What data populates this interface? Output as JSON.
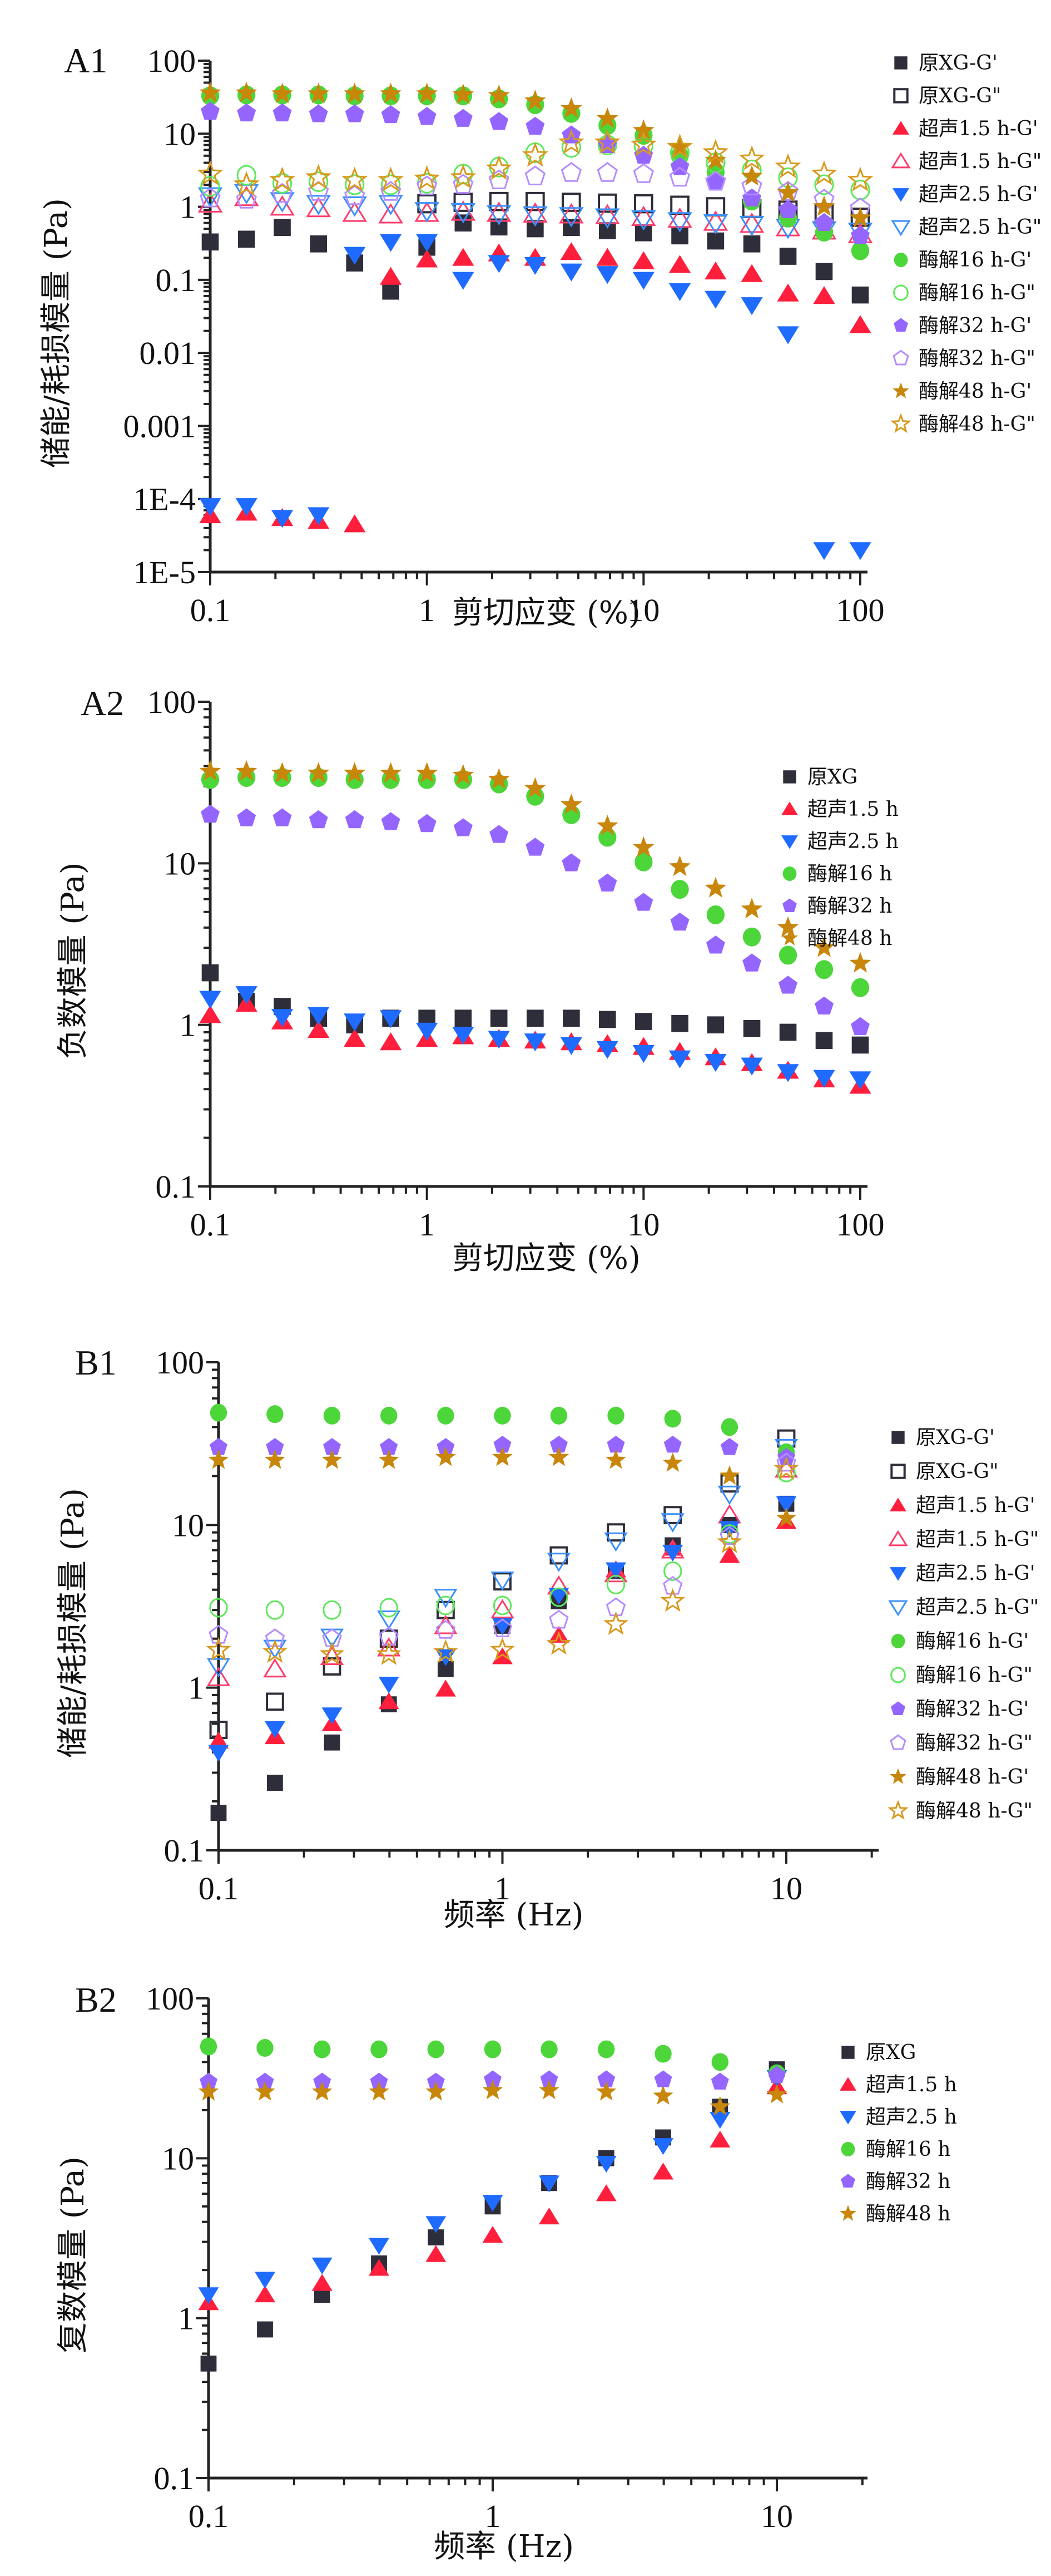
{
  "figure": {
    "panels": [
      "A1",
      "A2",
      "B1",
      "B2"
    ]
  },
  "colors": {
    "raw_xg": "#2e2d3a",
    "us_1_5h": "#ff1f3d",
    "us_1_5h_open": "#ff3b6b",
    "us_2_5h": "#1f6bff",
    "us_2_5h_open": "#3a8fff",
    "enz_16h": "#4cd63a",
    "enz_16h_open": "#5ee85a",
    "enz_32h": "#9466ff",
    "enz_32h_open": "#b58cff",
    "enz_48h": "#c8860a",
    "enz_48h_open": "#d79a1e"
  },
  "chart_data": [
    {
      "id": "A1",
      "type": "scatter",
      "panel_label": "A1",
      "title": "",
      "xlabel": "剪切应变 (%)",
      "ylabel": "储能/耗损模量 (Pa)",
      "xscale": "log",
      "yscale": "log",
      "xlim": [
        0.1,
        100
      ],
      "ylim": [
        1e-05,
        100
      ],
      "xticks": [
        0.1,
        1,
        10,
        100
      ],
      "xtick_labels": [
        "0.1",
        "1",
        "10",
        "100"
      ],
      "yticks": [
        1e-05,
        0.0001,
        0.001,
        0.01,
        0.1,
        1,
        10,
        100
      ],
      "ytick_labels": [
        "1E-5",
        "1E-4",
        "0.001",
        "0.01",
        "0.1",
        "1",
        "10",
        "100"
      ],
      "grid": false,
      "legend_position": "right",
      "x": [
        0.1,
        0.147,
        0.215,
        0.316,
        0.464,
        0.681,
        1.0,
        1.47,
        2.15,
        3.16,
        4.64,
        6.81,
        10.0,
        14.7,
        21.5,
        31.6,
        46.4,
        68.1,
        100
      ],
      "series": [
        {
          "name": "原XG-G'",
          "marker": "square",
          "filled": true,
          "color_key": "raw_xg",
          "values": [
            0.33,
            0.36,
            0.52,
            0.31,
            0.17,
            0.07,
            0.28,
            0.6,
            0.53,
            0.5,
            0.52,
            0.47,
            0.44,
            0.4,
            0.34,
            0.31,
            0.21,
            0.13,
            0.062
          ]
        },
        {
          "name": "原XG-G\"",
          "marker": "square",
          "filled": false,
          "color_key": "raw_xg",
          "values": [
            null,
            null,
            null,
            null,
            null,
            null,
            1.1,
            1.15,
            1.18,
            1.18,
            1.15,
            1.12,
            1.1,
            1.05,
            1.0,
            0.95,
            0.9,
            0.8,
            0.72
          ]
        },
        {
          "name": "超声1.5 h-G'",
          "marker": "triangle-up",
          "filled": true,
          "color_key": "us_1_5h",
          "values": [
            6e-05,
            6.5e-05,
            5.5e-05,
            5e-05,
            4.5e-05,
            0.11,
            0.19,
            0.2,
            0.23,
            0.2,
            0.24,
            0.2,
            0.18,
            0.16,
            0.13,
            0.12,
            0.065,
            0.06,
            0.024
          ]
        },
        {
          "name": "超声1.5 h-G\"",
          "marker": "triangle-up",
          "filled": false,
          "color_key": "us_1_5h_open",
          "values": [
            1.1,
            1.35,
            1.0,
            0.95,
            0.82,
            0.78,
            0.82,
            0.85,
            0.82,
            0.8,
            0.78,
            0.76,
            0.72,
            0.68,
            0.62,
            0.58,
            0.52,
            0.47,
            0.42
          ]
        },
        {
          "name": "超声2.5 h-G'",
          "marker": "triangle-down",
          "filled": true,
          "color_key": "us_2_5h",
          "values": [
            8e-05,
            8e-05,
            5.5e-05,
            6e-05,
            0.22,
            0.33,
            0.33,
            0.1,
            0.17,
            0.16,
            0.13,
            0.12,
            0.1,
            0.07,
            0.055,
            0.045,
            0.018,
            2e-05,
            2e-05
          ]
        },
        {
          "name": "超声2.5 h-G\"",
          "marker": "triangle-down",
          "filled": false,
          "color_key": "us_2_5h_open",
          "values": [
            1.4,
            1.55,
            1.2,
            1.1,
            1.05,
            1.1,
            0.88,
            0.85,
            0.8,
            0.77,
            0.75,
            0.72,
            0.68,
            0.64,
            0.6,
            0.57,
            0.52,
            0.48,
            0.46
          ]
        },
        {
          "name": "酶解16 h-G'",
          "marker": "circle",
          "filled": true,
          "color_key": "enz_16h",
          "values": [
            33,
            34,
            34,
            34,
            33,
            33,
            33,
            33,
            30,
            25,
            19,
            13,
            9.5,
            5,
            3,
            1.2,
            0.7,
            0.45,
            0.25
          ]
        },
        {
          "name": "酶解16 h-G\"",
          "marker": "circle",
          "filled": false,
          "color_key": "enz_16h_open",
          "values": [
            1.9,
            2.7,
            2.1,
            2.2,
            2.0,
            2.0,
            2.1,
            2.8,
            3.5,
            5.5,
            6.5,
            7.0,
            6.8,
            5.5,
            4.0,
            3.2,
            2.5,
            2.0,
            1.7
          ]
        },
        {
          "name": "酶解32 h-G'",
          "marker": "pentagon",
          "filled": true,
          "color_key": "enz_32h",
          "values": [
            20,
            19,
            19,
            18.5,
            18.5,
            18,
            17,
            16,
            14.5,
            12.5,
            9.5,
            7.0,
            5.0,
            3.5,
            2.2,
            1.3,
            0.9,
            0.6,
            0.4
          ]
        },
        {
          "name": "酶解32 h-G\"",
          "marker": "pentagon",
          "filled": false,
          "color_key": "enz_32h_open",
          "values": [
            1.3,
            1.25,
            1.5,
            1.6,
            1.4,
            1.6,
            1.9,
            2.0,
            2.3,
            2.6,
            2.9,
            2.9,
            2.8,
            2.5,
            2.2,
            1.9,
            1.6,
            1.25,
            0.95
          ]
        },
        {
          "name": "酶解48 h-G'",
          "marker": "star",
          "filled": true,
          "color_key": "enz_48h",
          "values": [
            36,
            36,
            35,
            35,
            35,
            35,
            35,
            34,
            33,
            28,
            22,
            16,
            11,
            6.5,
            4.3,
            2.6,
            1.55,
            1.0,
            0.7
          ]
        },
        {
          "name": "酶解48 h-G\"",
          "marker": "star",
          "filled": false,
          "color_key": "enz_48h_open",
          "values": [
            2.8,
            2.0,
            2.3,
            2.5,
            2.3,
            2.3,
            2.4,
            2.5,
            3.3,
            5.0,
            7.5,
            7.5,
            7.0,
            6.5,
            5.5,
            4.5,
            3.5,
            2.8,
            2.3
          ]
        }
      ]
    },
    {
      "id": "A2",
      "type": "scatter",
      "panel_label": "A2",
      "title": "",
      "xlabel": "剪切应变 (%)",
      "ylabel": "负数模量 (Pa)",
      "xscale": "log",
      "yscale": "log",
      "xlim": [
        0.1,
        100
      ],
      "ylim": [
        0.1,
        100
      ],
      "xticks": [
        0.1,
        1,
        10,
        100
      ],
      "xtick_labels": [
        "0.1",
        "1",
        "10",
        "100"
      ],
      "yticks": [
        0.1,
        1,
        10,
        100
      ],
      "ytick_labels": [
        "0.1",
        "1",
        "10",
        "100"
      ],
      "grid": false,
      "legend_position": "top-right",
      "x": [
        0.1,
        0.147,
        0.215,
        0.316,
        0.464,
        0.681,
        1.0,
        1.47,
        2.15,
        3.16,
        4.64,
        6.81,
        10.0,
        14.7,
        21.5,
        31.6,
        46.4,
        68.1,
        100
      ],
      "series": [
        {
          "name": "原XG",
          "marker": "square",
          "filled": true,
          "color_key": "raw_xg",
          "values": [
            2.1,
            1.4,
            1.3,
            1.1,
            1.0,
            1.1,
            1.1,
            1.1,
            1.1,
            1.1,
            1.1,
            1.08,
            1.05,
            1.02,
            1.0,
            0.95,
            0.9,
            0.8,
            0.75
          ]
        },
        {
          "name": "超声1.5 h",
          "marker": "triangle-up",
          "filled": true,
          "color_key": "us_1_5h",
          "values": [
            1.15,
            1.35,
            1.05,
            0.93,
            0.82,
            0.78,
            0.82,
            0.85,
            0.82,
            0.8,
            0.78,
            0.76,
            0.73,
            0.68,
            0.63,
            0.58,
            0.52,
            0.46,
            0.42
          ]
        },
        {
          "name": "超声2.5 h",
          "marker": "triangle-down",
          "filled": true,
          "color_key": "us_2_5h",
          "values": [
            1.45,
            1.55,
            1.12,
            1.15,
            1.05,
            1.1,
            0.92,
            0.87,
            0.82,
            0.79,
            0.75,
            0.71,
            0.67,
            0.62,
            0.59,
            0.56,
            0.51,
            0.47,
            0.46
          ]
        },
        {
          "name": "酶解16 h",
          "marker": "circle",
          "filled": true,
          "color_key": "enz_16h",
          "values": [
            33,
            34,
            34,
            34,
            33,
            33,
            33,
            33,
            31,
            26,
            20,
            14.5,
            10.2,
            6.9,
            4.8,
            3.5,
            2.7,
            2.2,
            1.7
          ]
        },
        {
          "name": "酶解32 h",
          "marker": "pentagon",
          "filled": true,
          "color_key": "enz_32h",
          "values": [
            20,
            19,
            19,
            18.5,
            18.5,
            18,
            17.5,
            16.5,
            15,
            12.5,
            10,
            7.5,
            5.7,
            4.3,
            3.1,
            2.4,
            1.75,
            1.3,
            0.97
          ]
        },
        {
          "name": "酶解48 h",
          "marker": "star",
          "filled": true,
          "color_key": "enz_48h",
          "values": [
            37,
            37,
            36,
            36,
            36,
            36,
            36,
            35,
            33,
            29,
            23,
            17,
            12.5,
            9.5,
            7.0,
            5.2,
            4.0,
            3.0,
            2.4
          ]
        }
      ]
    },
    {
      "id": "B1",
      "type": "scatter",
      "panel_label": "B1",
      "title": "",
      "xlabel": "频率 (Hz)",
      "ylabel": "储能/耗损模量 (Pa)",
      "xscale": "log",
      "yscale": "log",
      "xlim": [
        0.1,
        20
      ],
      "ylim": [
        0.1,
        100
      ],
      "xticks": [
        0.1,
        1,
        10
      ],
      "xtick_labels": [
        "0.1",
        "1",
        "10"
      ],
      "yticks": [
        0.1,
        1,
        10,
        100
      ],
      "ytick_labels": [
        "0.1",
        "1",
        "10",
        "100"
      ],
      "grid": false,
      "legend_position": "right",
      "x": [
        0.1,
        0.158,
        0.251,
        0.398,
        0.631,
        1.0,
        1.58,
        2.51,
        3.98,
        6.31,
        10.0
      ],
      "series": [
        {
          "name": "原XG-G'",
          "marker": "square",
          "filled": true,
          "color_key": "raw_xg",
          "values": [
            0.17,
            0.26,
            0.46,
            0.79,
            1.3,
            2.4,
            3.4,
            5.2,
            7.5,
            10,
            13.5
          ]
        },
        {
          "name": "原XG-G\"",
          "marker": "square",
          "filled": false,
          "color_key": "raw_xg",
          "values": [
            0.55,
            0.82,
            1.35,
            2.0,
            3.0,
            4.5,
            6.5,
            9.0,
            11.5,
            18,
            34
          ]
        },
        {
          "name": "超声1.5 h-G'",
          "marker": "triangle-up",
          "filled": true,
          "color_key": "us_1_5h",
          "values": [
            0.47,
            0.5,
            0.6,
            0.82,
            0.98,
            1.55,
            2.1,
            5.3,
            7.2,
            6.5,
            10.5
          ]
        },
        {
          "name": "超声1.5 h-G\"",
          "marker": "triangle-up",
          "filled": false,
          "color_key": "us_1_5h_open",
          "values": [
            1.15,
            1.3,
            1.55,
            1.75,
            2.4,
            3.0,
            4.2,
            5.0,
            7.0,
            11.5,
            22
          ]
        },
        {
          "name": "超声2.5 h-G'",
          "marker": "triangle-down",
          "filled": true,
          "color_key": "us_2_5h",
          "values": [
            0.4,
            0.56,
            0.68,
            1.05,
            1.55,
            2.4,
            3.7,
            5.3,
            6.8,
            9.5,
            13.5
          ]
        },
        {
          "name": "超声2.5 h-G\"",
          "marker": "triangle-down",
          "filled": false,
          "color_key": "us_2_5h_open",
          "values": [
            1.35,
            1.75,
            2.05,
            2.65,
            3.6,
            4.6,
            6.0,
            8.0,
            10.5,
            15.5,
            30
          ]
        },
        {
          "name": "酶解16 h-G'",
          "marker": "circle",
          "filled": true,
          "color_key": "enz_16h",
          "values": [
            49,
            48,
            47,
            47,
            47,
            47,
            47,
            47,
            45,
            40,
            28
          ]
        },
        {
          "name": "酶解16 h-G\"",
          "marker": "circle",
          "filled": false,
          "color_key": "enz_16h_open",
          "values": [
            3.1,
            3.0,
            3.0,
            3.1,
            3.2,
            3.2,
            3.6,
            4.3,
            5.2,
            8.8,
            21
          ]
        },
        {
          "name": "酶解32 h-G'",
          "marker": "pentagon",
          "filled": true,
          "color_key": "enz_32h",
          "values": [
            30,
            30,
            30,
            30,
            30,
            31,
            31,
            31,
            31,
            30,
            26
          ]
        },
        {
          "name": "酶解32 h-G\"",
          "marker": "pentagon",
          "filled": false,
          "color_key": "enz_32h_open",
          "values": [
            2.1,
            2.0,
            2.0,
            2.05,
            2.25,
            2.3,
            2.6,
            3.1,
            4.2,
            8.5,
            24
          ]
        },
        {
          "name": "酶解48 h-G'",
          "marker": "star",
          "filled": true,
          "color_key": "enz_48h",
          "values": [
            25,
            25,
            25,
            25,
            26,
            26,
            26,
            25,
            24,
            20,
            11
          ]
        },
        {
          "name": "酶解48 h-G\"",
          "marker": "star",
          "filled": false,
          "color_key": "enz_48h_open",
          "values": [
            1.7,
            1.65,
            1.6,
            1.6,
            1.65,
            1.7,
            1.85,
            2.45,
            3.4,
            7.8,
            22
          ]
        }
      ]
    },
    {
      "id": "B2",
      "type": "scatter",
      "panel_label": "B2",
      "title": "",
      "xlabel": "频率 (Hz)",
      "ylabel": "复数模量 (Pa)",
      "xscale": "log",
      "yscale": "log",
      "xlim": [
        0.1,
        20
      ],
      "ylim": [
        0.1,
        100
      ],
      "xticks": [
        0.1,
        1,
        10
      ],
      "xtick_labels": [
        "0.1",
        "1",
        "10"
      ],
      "yticks": [
        0.1,
        1,
        10,
        100
      ],
      "ytick_labels": [
        "0.1",
        "1",
        "10",
        "100"
      ],
      "grid": false,
      "legend_position": "top-right",
      "x": [
        0.1,
        0.158,
        0.251,
        0.398,
        0.631,
        1.0,
        1.58,
        2.51,
        3.98,
        6.31,
        10.0
      ],
      "series": [
        {
          "name": "原XG",
          "marker": "square",
          "filled": true,
          "color_key": "raw_xg",
          "values": [
            0.52,
            0.85,
            1.4,
            2.2,
            3.2,
            5.0,
            7.0,
            10,
            13.5,
            21,
            36
          ]
        },
        {
          "name": "超声1.5 h",
          "marker": "triangle-up",
          "filled": true,
          "color_key": "us_1_5h",
          "values": [
            1.25,
            1.4,
            1.65,
            2.05,
            2.5,
            3.3,
            4.3,
            6.0,
            8.2,
            13,
            28
          ]
        },
        {
          "name": "超声2.5 h",
          "marker": "triangle-down",
          "filled": true,
          "color_key": "us_2_5h",
          "values": [
            1.4,
            1.75,
            2.15,
            2.85,
            3.9,
            5.3,
            7.0,
            9.3,
            12,
            17.5,
            32
          ]
        },
        {
          "name": "酶解16 h",
          "marker": "circle",
          "filled": true,
          "color_key": "enz_16h",
          "values": [
            50,
            49,
            48,
            48,
            48,
            48,
            48,
            48,
            45,
            40,
            34
          ]
        },
        {
          "name": "酶解32 h",
          "marker": "pentagon",
          "filled": true,
          "color_key": "enz_32h",
          "values": [
            30,
            30,
            30,
            30,
            30,
            31,
            31,
            31,
            31,
            30,
            33
          ]
        },
        {
          "name": "酶解48 h",
          "marker": "star",
          "filled": true,
          "color_key": "enz_48h",
          "values": [
            26,
            26,
            26,
            26,
            26,
            26.5,
            26.5,
            26,
            24.5,
            21,
            25
          ]
        }
      ]
    }
  ]
}
